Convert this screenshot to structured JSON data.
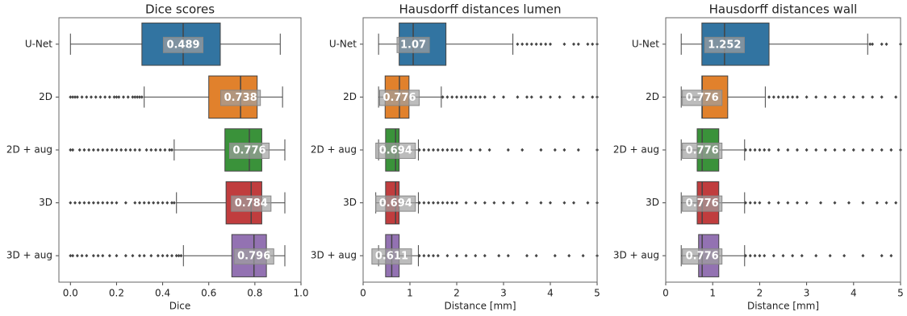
{
  "chart_data": [
    {
      "type": "boxplot",
      "title": "Dice scores",
      "x_label": "Dice",
      "categories": [
        "U-Net",
        "2D",
        "2D + aug",
        "3D",
        "3D + aug"
      ],
      "colors": [
        "#3274a1",
        "#e1812c",
        "#3a923a",
        "#c03d3e",
        "#9372b2"
      ],
      "xlim": [
        -0.05,
        1.0
      ],
      "xticks": [
        {
          "value": 0,
          "label": "0.0"
        },
        {
          "value": 0.2,
          "label": "0.2"
        },
        {
          "value": 0.4,
          "label": "0.4"
        },
        {
          "value": 0.6,
          "label": "0.6"
        },
        {
          "value": 0.8,
          "label": "0.8"
        },
        {
          "value": 1.0,
          "label": "1.0"
        }
      ],
      "boxes": [
        {
          "whislo": 0.0,
          "q1": 0.31,
          "med": 0.489,
          "q3": 0.65,
          "whishi": 0.91,
          "fliers": []
        },
        {
          "whislo": 0.32,
          "q1": 0.6,
          "med": 0.738,
          "q3": 0.81,
          "whishi": 0.92,
          "fliers": [
            0.0,
            0.01,
            0.02,
            0.03,
            0.05,
            0.07,
            0.09,
            0.11,
            0.13,
            0.15,
            0.17,
            0.19,
            0.2,
            0.21,
            0.23,
            0.25,
            0.27,
            0.28,
            0.29,
            0.3,
            0.31
          ]
        },
        {
          "whislo": 0.45,
          "q1": 0.67,
          "med": 0.776,
          "q3": 0.83,
          "whishi": 0.93,
          "fliers": [
            0.0,
            0.01,
            0.04,
            0.06,
            0.08,
            0.1,
            0.12,
            0.14,
            0.16,
            0.18,
            0.2,
            0.22,
            0.24,
            0.26,
            0.28,
            0.3,
            0.33,
            0.35,
            0.37,
            0.39,
            0.41,
            0.43,
            0.44
          ]
        },
        {
          "whislo": 0.46,
          "q1": 0.675,
          "med": 0.784,
          "q3": 0.83,
          "whishi": 0.93,
          "fliers": [
            0.0,
            0.02,
            0.04,
            0.06,
            0.08,
            0.1,
            0.12,
            0.14,
            0.16,
            0.18,
            0.2,
            0.24,
            0.28,
            0.3,
            0.32,
            0.34,
            0.36,
            0.38,
            0.4,
            0.42,
            0.44,
            0.45
          ]
        },
        {
          "whislo": 0.49,
          "q1": 0.7,
          "med": 0.796,
          "q3": 0.85,
          "whishi": 0.93,
          "fliers": [
            0.0,
            0.01,
            0.03,
            0.05,
            0.07,
            0.1,
            0.12,
            0.14,
            0.17,
            0.2,
            0.24,
            0.27,
            0.3,
            0.32,
            0.35,
            0.38,
            0.4,
            0.42,
            0.44,
            0.46,
            0.47,
            0.48
          ]
        }
      ]
    },
    {
      "type": "boxplot",
      "title": "Hausdorff distances lumen",
      "x_label": "Distance [mm]",
      "categories": [
        "U-Net",
        "2D",
        "2D + aug",
        "3D",
        "3D + aug"
      ],
      "colors": [
        "#3274a1",
        "#e1812c",
        "#3a923a",
        "#c03d3e",
        "#9372b2"
      ],
      "xlim": [
        0,
        5
      ],
      "xticks": [
        0,
        1,
        2,
        3,
        4,
        5
      ],
      "boxes": [
        {
          "whislo": 0.33,
          "q1": 0.77,
          "med": 1.07,
          "q3": 1.77,
          "whishi": 3.2,
          "fliers": [
            3.3,
            3.4,
            3.5,
            3.6,
            3.7,
            3.8,
            3.9,
            4.0,
            4.3,
            4.5,
            4.6,
            4.8,
            4.9,
            5.0
          ]
        },
        {
          "whislo": 0.33,
          "q1": 0.47,
          "med": 0.776,
          "q3": 0.98,
          "whishi": 1.67,
          "fliers": [
            1.7,
            1.8,
            1.9,
            2.0,
            2.1,
            2.2,
            2.3,
            2.4,
            2.5,
            2.6,
            2.8,
            3.0,
            3.3,
            3.5,
            3.6,
            3.8,
            4.0,
            4.2,
            4.5,
            4.7,
            4.9,
            5.0
          ]
        },
        {
          "whislo": 0.33,
          "q1": 0.48,
          "med": 0.694,
          "q3": 0.77,
          "whishi": 1.18,
          "fliers": [
            1.2,
            1.3,
            1.4,
            1.5,
            1.6,
            1.7,
            1.8,
            1.9,
            2.0,
            2.1,
            2.3,
            2.5,
            2.7,
            3.1,
            3.4,
            3.8,
            4.1,
            4.3,
            4.6,
            5.0
          ]
        },
        {
          "whislo": 0.27,
          "q1": 0.48,
          "med": 0.694,
          "q3": 0.77,
          "whishi": 1.18,
          "fliers": [
            1.2,
            1.3,
            1.4,
            1.5,
            1.6,
            1.7,
            1.8,
            1.9,
            2.0,
            2.2,
            2.4,
            2.6,
            2.8,
            3.0,
            3.2,
            3.5,
            3.8,
            4.0,
            4.3,
            4.5,
            4.8,
            5.0
          ]
        },
        {
          "whislo": 0.33,
          "q1": 0.48,
          "med": 0.611,
          "q3": 0.77,
          "whishi": 1.18,
          "fliers": [
            1.2,
            1.3,
            1.4,
            1.5,
            1.6,
            1.8,
            2.0,
            2.2,
            2.4,
            2.6,
            2.9,
            3.1,
            3.5,
            3.7,
            4.1,
            4.4,
            4.7,
            5.0
          ]
        }
      ]
    },
    {
      "type": "boxplot",
      "title": "Hausdorff distances wall",
      "x_label": "Distance [mm]",
      "categories": [
        "U-Net",
        "2D",
        "2D + aug",
        "3D",
        "3D + aug"
      ],
      "colors": [
        "#3274a1",
        "#e1812c",
        "#3a923a",
        "#c03d3e",
        "#9372b2"
      ],
      "xlim": [
        0,
        5
      ],
      "xticks": [
        0,
        1,
        2,
        3,
        4,
        5
      ],
      "boxes": [
        {
          "whislo": 0.33,
          "q1": 0.77,
          "med": 1.252,
          "q3": 2.2,
          "whishi": 4.3,
          "fliers": [
            4.35,
            4.4,
            4.6,
            4.7,
            5.0
          ]
        },
        {
          "whislo": 0.33,
          "q1": 0.77,
          "med": 0.776,
          "q3": 1.32,
          "whishi": 2.12,
          "fliers": [
            2.2,
            2.3,
            2.4,
            2.5,
            2.6,
            2.7,
            2.8,
            3.0,
            3.2,
            3.4,
            3.6,
            3.8,
            4.0,
            4.2,
            4.4,
            4.6,
            4.9
          ]
        },
        {
          "whislo": 0.33,
          "q1": 0.67,
          "med": 0.776,
          "q3": 1.13,
          "whishi": 1.68,
          "fliers": [
            1.7,
            1.8,
            1.9,
            2.0,
            2.1,
            2.2,
            2.4,
            2.6,
            2.8,
            3.0,
            3.2,
            3.4,
            3.6,
            3.8,
            4.0,
            4.2,
            4.4,
            4.6,
            4.8,
            5.0
          ]
        },
        {
          "whislo": 0.33,
          "q1": 0.67,
          "med": 0.776,
          "q3": 1.13,
          "whishi": 1.68,
          "fliers": [
            1.7,
            1.8,
            1.9,
            2.0,
            2.2,
            2.4,
            2.6,
            2.8,
            3.0,
            3.3,
            3.6,
            3.9,
            4.2,
            4.5,
            4.7,
            4.9
          ]
        },
        {
          "whislo": 0.33,
          "q1": 0.7,
          "med": 0.776,
          "q3": 1.13,
          "whishi": 1.68,
          "fliers": [
            1.7,
            1.8,
            1.9,
            2.0,
            2.1,
            2.3,
            2.5,
            2.7,
            2.9,
            3.2,
            3.5,
            3.8,
            4.2,
            4.6,
            4.8
          ]
        }
      ]
    }
  ]
}
